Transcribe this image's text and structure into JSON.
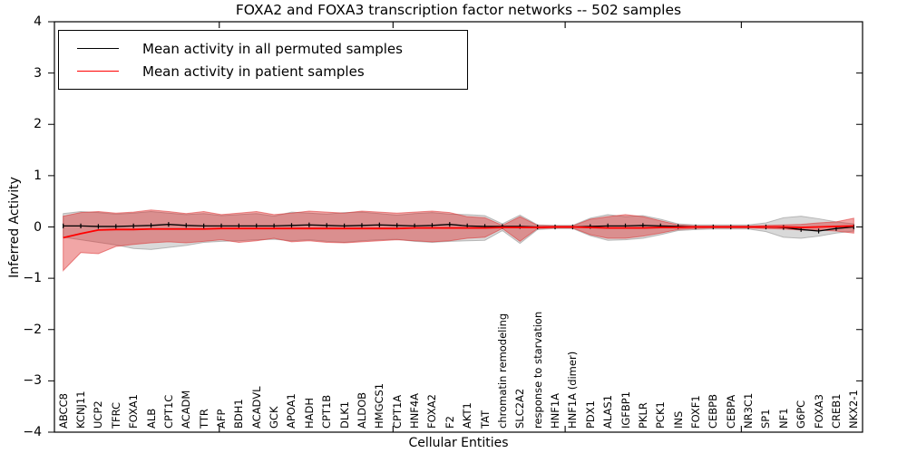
{
  "chart_data": {
    "type": "line",
    "title": "FOXA2 and FOXA3 transcription factor networks -- 502 samples",
    "xlabel": "Cellular Entities",
    "ylabel": "Inferred Activity",
    "ylim": [
      -4,
      4
    ],
    "yticks": [
      4,
      3,
      2,
      1,
      0,
      -1,
      -2,
      -3,
      -4
    ],
    "yticklabels": [
      "4",
      "3",
      "2",
      "1",
      "0",
      "−1",
      "−2",
      "−3",
      "−4"
    ],
    "grid": false,
    "legend_position": "upper left",
    "categories": [
      "ABCC8",
      "KCNJ11",
      "UCP2",
      "TFRC",
      "FOXA1",
      "ALB",
      "CPT1C",
      "ACADM",
      "TTR",
      "AFP",
      "BDH1",
      "ACADVL",
      "GCK",
      "APOA1",
      "HADH",
      "CPT1B",
      "DLK1",
      "ALDOB",
      "HMGCS1",
      "CPT1A",
      "HNF4A",
      "FOXA2",
      "F2",
      "AKT1",
      "TAT",
      "chromatin remodeling",
      "SLC2A2",
      "response to starvation",
      "HNF1A",
      "HNF1A (dimer)",
      "PDX1",
      "ALAS1",
      "IGFBP1",
      "PKLR",
      "PCK1",
      "INS",
      "FOXF1",
      "CEBPB",
      "CEBPA",
      "NR3C1",
      "SP1",
      "NF1",
      "G6PC",
      "FOXA3",
      "CREB1",
      "NKX2-1"
    ],
    "series": [
      {
        "name": "Mean activity in all permuted samples",
        "color": "#000000",
        "marker": "vertical-tick",
        "values": [
          0.02,
          0.02,
          0.01,
          0.01,
          0.02,
          0.03,
          0.05,
          0.03,
          0.02,
          0.02,
          0.02,
          0.02,
          0.02,
          0.03,
          0.04,
          0.03,
          0.02,
          0.03,
          0.04,
          0.03,
          0.02,
          0.03,
          0.05,
          0.02,
          0.01,
          0.01,
          0.01,
          0.0,
          0.0,
          0.0,
          0.01,
          0.02,
          0.02,
          0.03,
          0.02,
          0.01,
          0.0,
          0.0,
          0.0,
          0.0,
          0.0,
          -0.01,
          -0.05,
          -0.08,
          -0.03,
          0.0
        ]
      },
      {
        "name": "Mean activity in patient samples",
        "color": "#ff0000",
        "marker": "none",
        "values": [
          -0.21,
          -0.13,
          -0.06,
          -0.05,
          -0.05,
          -0.04,
          -0.04,
          -0.04,
          -0.04,
          -0.03,
          -0.03,
          -0.03,
          -0.03,
          -0.03,
          -0.03,
          -0.03,
          -0.03,
          -0.03,
          -0.03,
          -0.03,
          -0.02,
          -0.02,
          -0.02,
          -0.02,
          -0.02,
          -0.01,
          -0.01,
          -0.01,
          0.0,
          0.0,
          -0.01,
          -0.02,
          -0.02,
          -0.02,
          -0.01,
          -0.01,
          0.0,
          0.0,
          0.0,
          0.0,
          0.0,
          0.0,
          -0.01,
          0.0,
          0.01,
          0.02
        ]
      }
    ],
    "bands": [
      {
        "name": "permuted samples spread",
        "fill": "rgba(128,128,128,0.30)",
        "edge": "rgba(130,130,130,0.50)",
        "upper": [
          0.26,
          0.3,
          0.28,
          0.25,
          0.27,
          0.3,
          0.27,
          0.24,
          0.26,
          0.22,
          0.24,
          0.26,
          0.21,
          0.29,
          0.27,
          0.25,
          0.28,
          0.29,
          0.26,
          0.23,
          0.26,
          0.28,
          0.25,
          0.24,
          0.22,
          0.06,
          0.23,
          0.04,
          0.03,
          0.03,
          0.17,
          0.24,
          0.2,
          0.22,
          0.15,
          0.06,
          0.04,
          0.04,
          0.04,
          0.04,
          0.08,
          0.18,
          0.21,
          0.16,
          0.1,
          0.06
        ],
        "lower": [
          -0.2,
          -0.25,
          -0.3,
          -0.35,
          -0.42,
          -0.44,
          -0.4,
          -0.36,
          -0.3,
          -0.28,
          -0.27,
          -0.25,
          -0.24,
          -0.27,
          -0.25,
          -0.28,
          -0.3,
          -0.27,
          -0.25,
          -0.24,
          -0.28,
          -0.3,
          -0.28,
          -0.27,
          -0.26,
          -0.07,
          -0.32,
          -0.05,
          -0.03,
          -0.03,
          -0.17,
          -0.26,
          -0.25,
          -0.22,
          -0.15,
          -0.07,
          -0.05,
          -0.04,
          -0.04,
          -0.04,
          -0.09,
          -0.2,
          -0.22,
          -0.18,
          -0.12,
          -0.08
        ]
      },
      {
        "name": "patient samples spread",
        "fill": "rgba(221,32,32,0.40)",
        "edge": "rgba(220,50,50,0.55)",
        "upper": [
          0.21,
          0.28,
          0.3,
          0.27,
          0.29,
          0.33,
          0.3,
          0.26,
          0.3,
          0.24,
          0.27,
          0.3,
          0.24,
          0.27,
          0.31,
          0.29,
          0.27,
          0.31,
          0.29,
          0.27,
          0.29,
          0.31,
          0.28,
          0.2,
          0.18,
          0.03,
          0.2,
          0.03,
          0.02,
          0.02,
          0.15,
          0.2,
          0.24,
          0.2,
          0.12,
          0.04,
          0.02,
          0.02,
          0.02,
          0.02,
          0.03,
          0.04,
          0.05,
          0.08,
          0.1,
          0.17
        ],
        "lower": [
          -0.85,
          -0.5,
          -0.52,
          -0.38,
          -0.34,
          -0.31,
          -0.29,
          -0.31,
          -0.28,
          -0.25,
          -0.3,
          -0.27,
          -0.22,
          -0.29,
          -0.27,
          -0.3,
          -0.31,
          -0.29,
          -0.27,
          -0.25,
          -0.27,
          -0.29,
          -0.27,
          -0.22,
          -0.2,
          -0.03,
          -0.28,
          -0.03,
          -0.02,
          -0.02,
          -0.15,
          -0.22,
          -0.22,
          -0.18,
          -0.12,
          -0.05,
          -0.03,
          -0.02,
          -0.02,
          -0.02,
          -0.03,
          -0.04,
          -0.06,
          -0.06,
          -0.08,
          -0.12
        ]
      }
    ]
  }
}
